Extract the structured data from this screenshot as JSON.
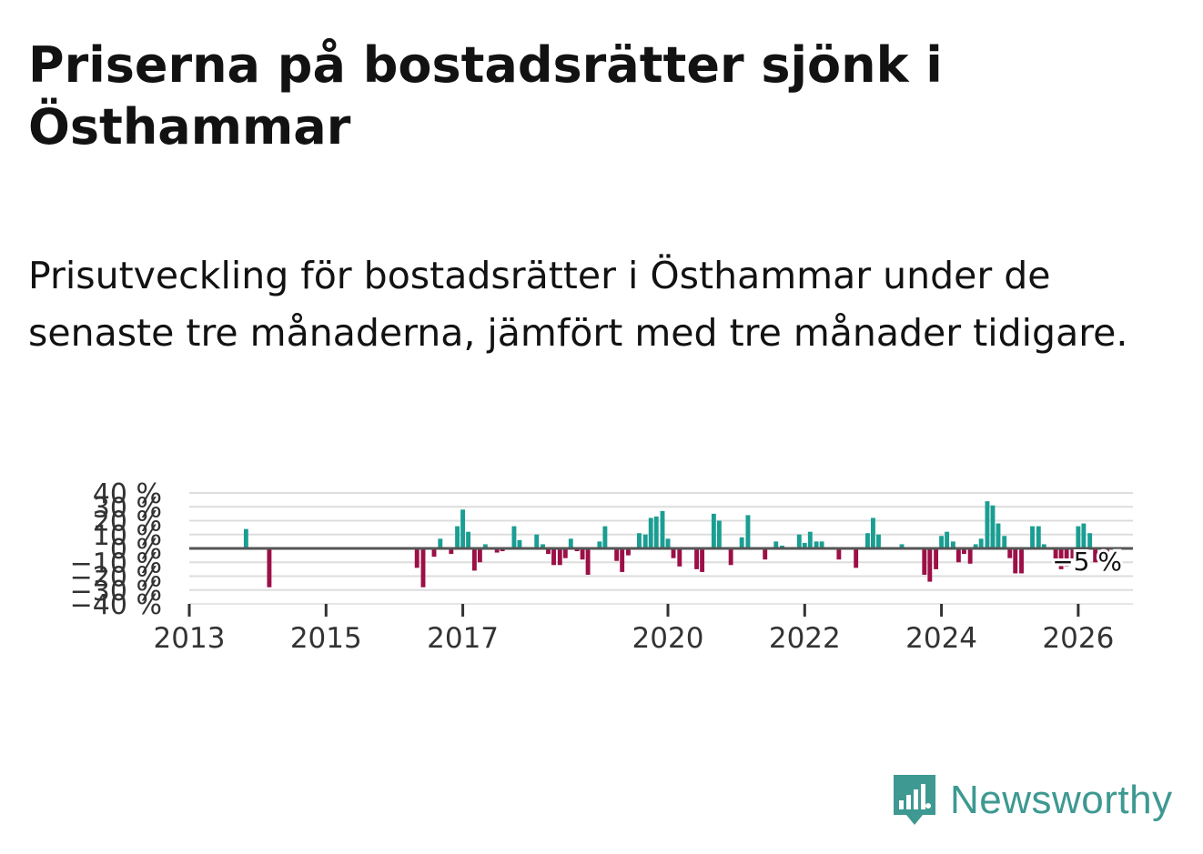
{
  "title": "Priserna på bostadsrätter sjönk i Östhammar",
  "subtitle": "Prisutveckling för bostadsrätter i Östhammar under de senaste tre månaderna, jämfört med tre månader tidigare.",
  "brand": {
    "name": "Newsworthy",
    "color": "#3d9991"
  },
  "colors": {
    "positive": "#1a9e93",
    "negative": "#9c0f47",
    "zero_line": "#555555",
    "grid": "#dddddd"
  },
  "chart_data": {
    "type": "bar",
    "title": "Prisutveckling för bostadsrätter i Östhammar",
    "xlabel": "",
    "ylabel": "",
    "ylim": [
      -40,
      40
    ],
    "y_ticks": [
      {
        "value": 40,
        "label": "40 %"
      },
      {
        "value": 30,
        "label": "30 %"
      },
      {
        "value": 20,
        "label": "20 %"
      },
      {
        "value": 10,
        "label": "10 %"
      },
      {
        "value": 0,
        "label": "0 %"
      },
      {
        "value": -10,
        "label": "−10 %"
      },
      {
        "value": -20,
        "label": "−20 %"
      },
      {
        "value": -30,
        "label": "−30 %"
      },
      {
        "value": -40,
        "label": "−40 %"
      }
    ],
    "x_range": [
      2013.0,
      2026.8
    ],
    "x_ticks": [
      {
        "value": 2013,
        "label": "2013"
      },
      {
        "value": 2015,
        "label": "2015"
      },
      {
        "value": 2017,
        "label": "2017"
      },
      {
        "value": 2020,
        "label": "2020"
      },
      {
        "value": 2022,
        "label": "2022"
      },
      {
        "value": 2024,
        "label": "2024"
      },
      {
        "value": 2026,
        "label": "2026"
      }
    ],
    "last_value_label": "−5 %",
    "points": [
      {
        "x": 2013.83,
        "y": 14
      },
      {
        "x": 2014.17,
        "y": -28
      },
      {
        "x": 2016.33,
        "y": -14
      },
      {
        "x": 2016.42,
        "y": -28
      },
      {
        "x": 2016.58,
        "y": -6
      },
      {
        "x": 2016.67,
        "y": 7
      },
      {
        "x": 2016.83,
        "y": -4
      },
      {
        "x": 2016.92,
        "y": 16
      },
      {
        "x": 2017.0,
        "y": 28
      },
      {
        "x": 2017.08,
        "y": 12
      },
      {
        "x": 2017.17,
        "y": -16
      },
      {
        "x": 2017.25,
        "y": -10
      },
      {
        "x": 2017.33,
        "y": 3
      },
      {
        "x": 2017.5,
        "y": -3
      },
      {
        "x": 2017.58,
        "y": -2
      },
      {
        "x": 2017.67,
        "y": -1
      },
      {
        "x": 2017.75,
        "y": 16
      },
      {
        "x": 2017.83,
        "y": 6
      },
      {
        "x": 2017.92,
        "y": 1
      },
      {
        "x": 2018.08,
        "y": 10
      },
      {
        "x": 2018.17,
        "y": 3
      },
      {
        "x": 2018.25,
        "y": -4
      },
      {
        "x": 2018.33,
        "y": -12
      },
      {
        "x": 2018.42,
        "y": -12
      },
      {
        "x": 2018.5,
        "y": -7
      },
      {
        "x": 2018.58,
        "y": 7
      },
      {
        "x": 2018.67,
        "y": -2
      },
      {
        "x": 2018.75,
        "y": -8
      },
      {
        "x": 2018.83,
        "y": -19
      },
      {
        "x": 2019.0,
        "y": 5
      },
      {
        "x": 2019.08,
        "y": 16
      },
      {
        "x": 2019.17,
        "y": 1
      },
      {
        "x": 2019.25,
        "y": -9
      },
      {
        "x": 2019.33,
        "y": -17
      },
      {
        "x": 2019.42,
        "y": -5
      },
      {
        "x": 2019.58,
        "y": 11
      },
      {
        "x": 2019.67,
        "y": 10
      },
      {
        "x": 2019.75,
        "y": 22
      },
      {
        "x": 2019.83,
        "y": 23
      },
      {
        "x": 2019.92,
        "y": 27
      },
      {
        "x": 2020.0,
        "y": 7
      },
      {
        "x": 2020.08,
        "y": -7
      },
      {
        "x": 2020.17,
        "y": -13
      },
      {
        "x": 2020.42,
        "y": -15
      },
      {
        "x": 2020.5,
        "y": -17
      },
      {
        "x": 2020.67,
        "y": 25
      },
      {
        "x": 2020.75,
        "y": 20
      },
      {
        "x": 2020.92,
        "y": -12
      },
      {
        "x": 2021.08,
        "y": 8
      },
      {
        "x": 2021.17,
        "y": 24
      },
      {
        "x": 2021.42,
        "y": -8
      },
      {
        "x": 2021.58,
        "y": 5
      },
      {
        "x": 2021.67,
        "y": 2
      },
      {
        "x": 2021.83,
        "y": 1
      },
      {
        "x": 2021.92,
        "y": 10
      },
      {
        "x": 2022.0,
        "y": 4
      },
      {
        "x": 2022.08,
        "y": 12
      },
      {
        "x": 2022.17,
        "y": 5
      },
      {
        "x": 2022.25,
        "y": 5
      },
      {
        "x": 2022.42,
        "y": 1
      },
      {
        "x": 2022.5,
        "y": -8
      },
      {
        "x": 2022.75,
        "y": -14
      },
      {
        "x": 2022.92,
        "y": 11
      },
      {
        "x": 2023.0,
        "y": 22
      },
      {
        "x": 2023.08,
        "y": 10
      },
      {
        "x": 2023.42,
        "y": 3
      },
      {
        "x": 2023.75,
        "y": -19
      },
      {
        "x": 2023.83,
        "y": -24
      },
      {
        "x": 2023.92,
        "y": -15
      },
      {
        "x": 2024.0,
        "y": 9
      },
      {
        "x": 2024.08,
        "y": 12
      },
      {
        "x": 2024.17,
        "y": 5
      },
      {
        "x": 2024.25,
        "y": -10
      },
      {
        "x": 2024.33,
        "y": -4
      },
      {
        "x": 2024.42,
        "y": -11
      },
      {
        "x": 2024.5,
        "y": 3
      },
      {
        "x": 2024.58,
        "y": 7
      },
      {
        "x": 2024.67,
        "y": 34
      },
      {
        "x": 2024.75,
        "y": 31
      },
      {
        "x": 2024.83,
        "y": 18
      },
      {
        "x": 2024.92,
        "y": 9
      },
      {
        "x": 2025.0,
        "y": -7
      },
      {
        "x": 2025.08,
        "y": -18
      },
      {
        "x": 2025.17,
        "y": -18
      },
      {
        "x": 2025.33,
        "y": 16
      },
      {
        "x": 2025.42,
        "y": 16
      },
      {
        "x": 2025.5,
        "y": 3
      },
      {
        "x": 2025.67,
        "y": -8
      },
      {
        "x": 2025.75,
        "y": -15
      },
      {
        "x": 2025.83,
        "y": -13
      },
      {
        "x": 2025.92,
        "y": -8
      },
      {
        "x": 2026.0,
        "y": 16
      },
      {
        "x": 2026.08,
        "y": 18
      },
      {
        "x": 2026.17,
        "y": 11
      },
      {
        "x": 2026.25,
        "y": -10
      },
      {
        "x": 2026.42,
        "y": -5
      }
    ]
  }
}
